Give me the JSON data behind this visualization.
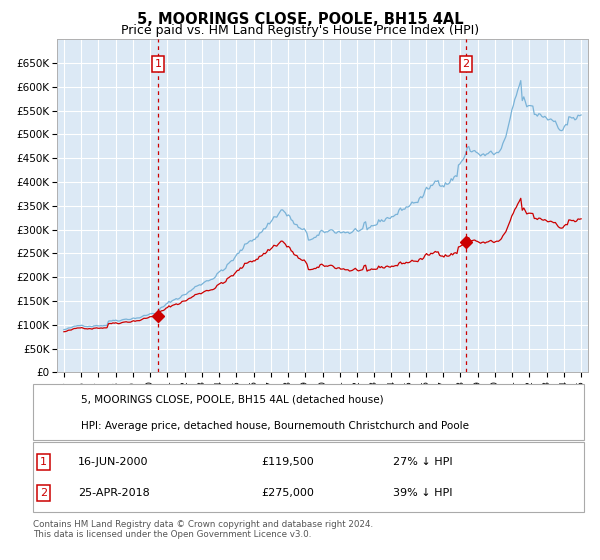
{
  "title": "5, MOORINGS CLOSE, POOLE, BH15 4AL",
  "subtitle": "Price paid vs. HM Land Registry's House Price Index (HPI)",
  "title_fontsize": 10.5,
  "subtitle_fontsize": 9,
  "hpi_color": "#7ab3d8",
  "property_color": "#cc0000",
  "bg_color": "#dce9f5",
  "grid_color": "#ffffff",
  "ylim": [
    0,
    700000
  ],
  "yticks": [
    0,
    50000,
    100000,
    150000,
    200000,
    250000,
    300000,
    350000,
    400000,
    450000,
    500000,
    550000,
    600000,
    650000
  ],
  "ytick_labels": [
    "£0",
    "£50K",
    "£100K",
    "£150K",
    "£200K",
    "£250K",
    "£300K",
    "£350K",
    "£400K",
    "£450K",
    "£500K",
    "£550K",
    "£600K",
    "£650K"
  ],
  "sale1_date_num": 2000.46,
  "sale1_price": 119500,
  "sale1_label": "1",
  "sale2_date_num": 2018.32,
  "sale2_price": 275000,
  "sale2_label": "2",
  "legend_property": "5, MOORINGS CLOSE, POOLE, BH15 4AL (detached house)",
  "legend_hpi": "HPI: Average price, detached house, Bournemouth Christchurch and Poole",
  "info1_label": "1",
  "info1_date": "16-JUN-2000",
  "info1_price": "£119,500",
  "info1_note": "27% ↓ HPI",
  "info2_label": "2",
  "info2_date": "25-APR-2018",
  "info2_price": "£275,000",
  "info2_note": "39% ↓ HPI",
  "footer": "Contains HM Land Registry data © Crown copyright and database right 2024.\nThis data is licensed under the Open Government Licence v3.0."
}
